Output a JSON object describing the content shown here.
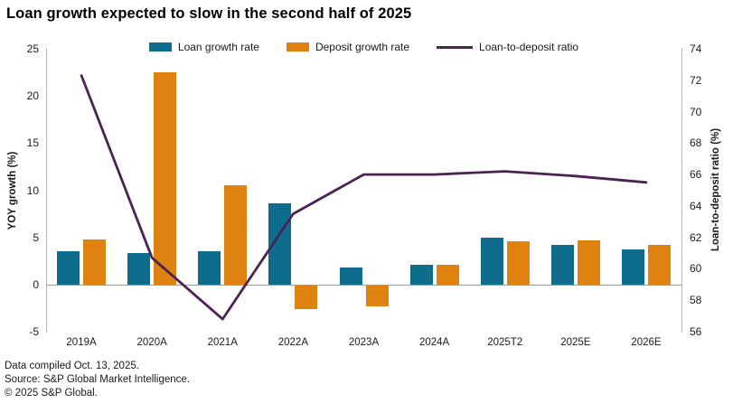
{
  "title": "Loan growth expected to slow in the second half of 2025",
  "legend": [
    {
      "label": "Loan growth rate",
      "type": "bar",
      "color": "#0e6d8d"
    },
    {
      "label": "Deposit growth rate",
      "type": "bar",
      "color": "#e0820f"
    },
    {
      "label": "Loan-to-deposit ratio",
      "type": "line",
      "color": "#4b2353"
    }
  ],
  "chart_data": {
    "type": "bar",
    "subtype": "grouped bars with overlay line on secondary axis",
    "title": "Loan growth expected to slow in the second half of 2025",
    "categories": [
      "2019A",
      "2020A",
      "2021A",
      "2022A",
      "2023A",
      "2024A",
      "2025T2",
      "2025E",
      "2026E"
    ],
    "series": [
      {
        "name": "Loan growth rate",
        "type": "bar",
        "axis": "left",
        "color": "#0e6d8d",
        "values": [
          3.5,
          3.3,
          3.5,
          8.6,
          1.8,
          2.1,
          5.0,
          4.2,
          3.7
        ]
      },
      {
        "name": "Deposit growth rate",
        "type": "bar",
        "axis": "left",
        "color": "#e0820f",
        "values": [
          4.8,
          22.5,
          10.5,
          -2.5,
          -2.2,
          2.1,
          4.6,
          4.7,
          4.2
        ]
      },
      {
        "name": "Loan-to-deposit ratio",
        "type": "line",
        "axis": "right",
        "color": "#4b2353",
        "values": [
          72.3,
          60.7,
          56.8,
          63.5,
          66.0,
          66.0,
          66.2,
          65.9,
          65.5
        ]
      }
    ],
    "left_axis": {
      "label": "YOY growth (%)",
      "min": -5,
      "max": 25,
      "ticks": [
        25,
        20,
        15,
        10,
        5,
        0,
        -5
      ]
    },
    "right_axis": {
      "label": "Loan-to-deposit ratio (%)",
      "min": 56,
      "max": 74,
      "ticks": [
        74,
        72,
        70,
        68,
        66,
        64,
        62,
        60,
        58,
        56
      ]
    },
    "grid": "off (zero baseline only)",
    "legend_position": "top center"
  },
  "footer": {
    "line1": "Data compiled Oct. 13, 2025.",
    "line2": "Source: S&P Global Market Intelligence.",
    "line3": "© 2025 S&P Global."
  }
}
